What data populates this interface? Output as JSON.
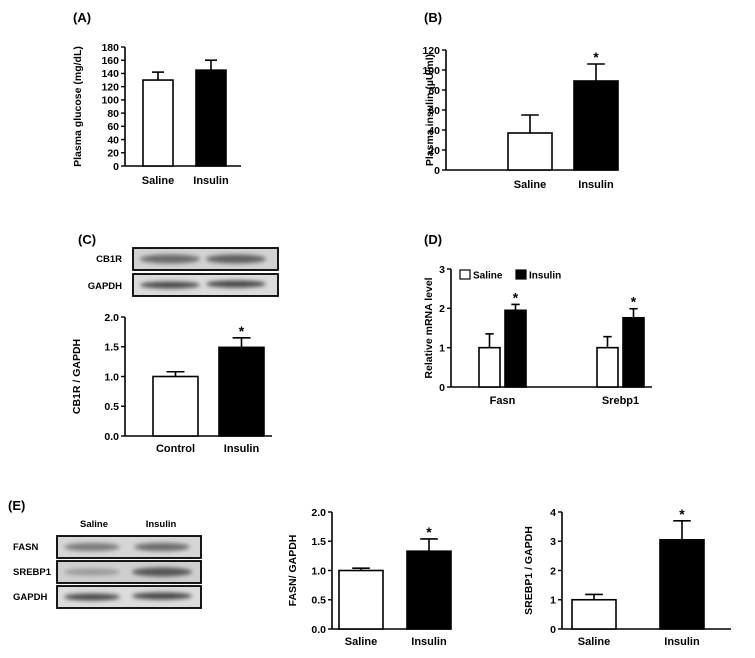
{
  "panels": {
    "A": "(A)",
    "B": "(B)",
    "C": "(C)",
    "D": "(D)",
    "E": "(E)"
  },
  "blots": {
    "C": {
      "rows": [
        "CB1R",
        "GAPDH"
      ]
    },
    "E": {
      "columns": [
        "Saline",
        "Insulin"
      ],
      "rows": [
        "FASN",
        "SREBP1",
        "GAPDH"
      ]
    }
  },
  "colors": {
    "control": "#ffffff",
    "treated": "#000000",
    "stroke": "#000000"
  },
  "chart_data": [
    {
      "id": "A",
      "type": "bar",
      "categories": [
        "Saline",
        "Insulin"
      ],
      "values": [
        130,
        145
      ],
      "errors": [
        12,
        15
      ],
      "significance": [
        "",
        ""
      ],
      "ylabel": "Plasma glucose (mg/dL)",
      "ylim": [
        0,
        180
      ],
      "yticks": [
        "0",
        "20",
        "40",
        "60",
        "80",
        "100",
        "120",
        "140",
        "160",
        "180"
      ]
    },
    {
      "id": "B",
      "type": "bar",
      "categories": [
        "Saline",
        "Insulin"
      ],
      "values": [
        37,
        89
      ],
      "errors": [
        18,
        17
      ],
      "significance": [
        "",
        "*"
      ],
      "ylabel": "Plasma insulin (µU/ml)",
      "ylim": [
        0,
        120
      ],
      "yticks": [
        "0",
        "20",
        "40",
        "60",
        "80",
        "100",
        "120"
      ]
    },
    {
      "id": "C",
      "type": "bar",
      "categories": [
        "Control",
        "Insulin"
      ],
      "values": [
        1.0,
        1.49
      ],
      "errors": [
        0.08,
        0.16
      ],
      "significance": [
        "",
        "*"
      ],
      "ylabel": "CB1R / GAPDH",
      "ylim": [
        0,
        2.0
      ],
      "yticks": [
        "0.0",
        "0.5",
        "1.0",
        "1.5",
        "2.0"
      ]
    },
    {
      "id": "D",
      "type": "bar",
      "categories": [
        "Fasn",
        "Srebp1"
      ],
      "series": [
        {
          "name": "Saline",
          "values": [
            1.0,
            1.0
          ],
          "errors": [
            0.35,
            0.28
          ],
          "significance": [
            "",
            ""
          ]
        },
        {
          "name": "Insulin",
          "values": [
            1.95,
            1.76
          ],
          "errors": [
            0.15,
            0.23
          ],
          "significance": [
            "*",
            "*"
          ]
        }
      ],
      "ylabel": "Relative mRNA level",
      "ylim": [
        0,
        3
      ],
      "yticks": [
        "0",
        "1",
        "2",
        "3"
      ],
      "legend": "top-left"
    },
    {
      "id": "E1",
      "type": "bar",
      "categories": [
        "Saline",
        "Insulin"
      ],
      "values": [
        1.0,
        1.33
      ],
      "errors": [
        0.04,
        0.21
      ],
      "significance": [
        "",
        "*"
      ],
      "ylabel": "FASN/ GAPDH",
      "ylim": [
        0,
        2.0
      ],
      "yticks": [
        "0.0",
        "0.5",
        "1.0",
        "1.5",
        "2.0"
      ]
    },
    {
      "id": "E2",
      "type": "bar",
      "categories": [
        "Saline",
        "Insulin"
      ],
      "values": [
        1.0,
        3.05
      ],
      "errors": [
        0.18,
        0.65
      ],
      "significance": [
        "",
        "*"
      ],
      "ylabel": "SREBP1 / GAPDH",
      "ylim": [
        0,
        4
      ],
      "yticks": [
        "0",
        "1",
        "2",
        "3",
        "4"
      ]
    }
  ]
}
